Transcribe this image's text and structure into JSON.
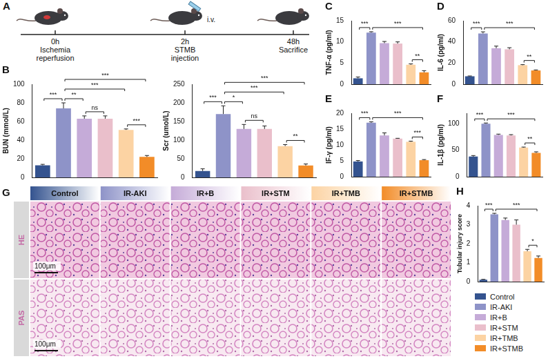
{
  "timeline": {
    "panel": "A",
    "events": [
      {
        "time": "0h",
        "text": [
          "Ischemia",
          "reperfusion"
        ]
      },
      {
        "time": "2h",
        "text": [
          "STMB",
          "injection"
        ],
        "route": "i.v."
      },
      {
        "time": "48h",
        "text": [
          "Sacrifice"
        ]
      }
    ]
  },
  "chart_data": [
    {
      "panel": "B",
      "type": "bar",
      "y_label": "BUN (mmol/L)",
      "categories": [
        "Control",
        "IR-AKI",
        "IR+B",
        "IR+STM",
        "IR+TMB",
        "IR+STMB"
      ],
      "values": [
        13,
        74,
        63,
        63,
        51,
        22
      ],
      "errors": [
        1,
        6,
        3,
        3,
        1,
        1.5
      ],
      "colors": [
        "#34538f",
        "#8e93c8",
        "#c5abd8",
        "#eabfcb",
        "#fcd3a3",
        "#f28c28"
      ],
      "ylim": [
        0,
        100
      ],
      "yticks": [
        0,
        20,
        40,
        60,
        80,
        100
      ],
      "grid": false,
      "tick_labels": "y",
      "significance": [
        {
          "from": 0,
          "to": 1,
          "label": "***"
        },
        {
          "from": 1,
          "to": 2,
          "label": "**"
        },
        {
          "from": 2,
          "to": 3,
          "label": "ns"
        },
        {
          "from": 1,
          "to": 4,
          "label": "***"
        },
        {
          "from": 1,
          "to": 5,
          "label": "***"
        },
        {
          "from": 4,
          "to": 5,
          "label": "***"
        }
      ]
    },
    {
      "type": "bar",
      "y_label": "Scr (umol/L)",
      "categories": [
        "Control",
        "IR-AKI",
        "IR+B",
        "IR+STM",
        "IR+TMB",
        "IR+STMB"
      ],
      "values": [
        17,
        170,
        130,
        130,
        84,
        32
      ],
      "errors": [
        6,
        22,
        12,
        8,
        4,
        4
      ],
      "colors": [
        "#34538f",
        "#8e93c8",
        "#c5abd8",
        "#eabfcb",
        "#fcd3a3",
        "#f28c28"
      ],
      "ylim": [
        0,
        250
      ],
      "yticks": [
        0,
        50,
        100,
        150,
        200,
        250
      ],
      "grid": false,
      "tick_labels": "y",
      "significance": [
        {
          "from": 0,
          "to": 1,
          "label": "***"
        },
        {
          "from": 1,
          "to": 2,
          "label": "*"
        },
        {
          "from": 2,
          "to": 3,
          "label": "ns"
        },
        {
          "from": 1,
          "to": 4,
          "label": "***"
        },
        {
          "from": 1,
          "to": 5,
          "label": "***"
        },
        {
          "from": 4,
          "to": 5,
          "label": "**"
        }
      ]
    },
    {
      "panel": "C",
      "type": "bar",
      "y_label": "TNF-α (pg/ml)",
      "categories": [
        "Control",
        "IR-AKI",
        "IR+B",
        "IR+STM",
        "IR+TMB",
        "IR+STMB"
      ],
      "values": [
        1.4,
        12.2,
        9.7,
        9.6,
        4.6,
        2.8
      ],
      "errors": [
        0.3,
        0.2,
        0.4,
        0.4,
        0.2,
        0.4
      ],
      "colors": [
        "#34538f",
        "#8e93c8",
        "#c5abd8",
        "#eabfcb",
        "#fcd3a3",
        "#f28c28"
      ],
      "ylim": [
        0,
        15
      ],
      "yticks": [
        0,
        5,
        10,
        15
      ],
      "grid": false,
      "tick_labels": "y",
      "significance": [
        {
          "from": 0,
          "to": 1,
          "label": "***"
        },
        {
          "from": 1,
          "to": 5,
          "label": "***"
        },
        {
          "from": 4,
          "to": 5,
          "label": "**"
        }
      ]
    },
    {
      "panel": "D",
      "type": "bar",
      "y_label": "IL-6 (pg/ml)",
      "categories": [
        "Control",
        "IR-AKI",
        "IR+B",
        "IR+STM",
        "IR+TMB",
        "IR+STMB"
      ],
      "values": [
        7.5,
        48,
        34,
        33,
        18,
        13
      ],
      "errors": [
        0.3,
        1.5,
        2,
        1.5,
        0.5,
        0.5
      ],
      "colors": [
        "#34538f",
        "#8e93c8",
        "#c5abd8",
        "#eabfcb",
        "#fcd3a3",
        "#f28c28"
      ],
      "ylim": [
        0,
        60
      ],
      "yticks": [
        0,
        20,
        40,
        60
      ],
      "grid": false,
      "tick_labels": "y",
      "significance": [
        {
          "from": 0,
          "to": 1,
          "label": "***"
        },
        {
          "from": 1,
          "to": 5,
          "label": "***"
        },
        {
          "from": 4,
          "to": 5,
          "label": "**"
        }
      ]
    },
    {
      "panel": "E",
      "type": "bar",
      "y_label": "IF-γ (pg/ml)",
      "categories": [
        "Control",
        "IR-AKI",
        "IR+B",
        "IR+STM",
        "IR+TMB",
        "IR+STMB"
      ],
      "values": [
        4.8,
        17,
        13,
        12,
        11,
        5.2
      ],
      "errors": [
        0.3,
        0.3,
        0.8,
        0.1,
        0.2,
        0.2
      ],
      "colors": [
        "#34538f",
        "#8e93c8",
        "#c5abd8",
        "#eabfcb",
        "#fcd3a3",
        "#f28c28"
      ],
      "ylim": [
        0,
        20
      ],
      "yticks": [
        0,
        5,
        10,
        15,
        20
      ],
      "grid": false,
      "tick_labels": "y",
      "significance": [
        {
          "from": 0,
          "to": 1,
          "label": "***"
        },
        {
          "from": 1,
          "to": 5,
          "label": "***"
        },
        {
          "from": 4,
          "to": 5,
          "label": "***"
        }
      ]
    },
    {
      "panel": "F",
      "type": "bar",
      "y_label": "IL-1β (pg/ml)",
      "categories": [
        "Control",
        "IR-AKI",
        "IR+B",
        "IR+STM",
        "IR+TMB",
        "IR+STMB"
      ],
      "values": [
        38,
        100,
        79,
        78,
        55,
        45
      ],
      "errors": [
        2,
        1.5,
        1.5,
        1.5,
        1,
        2
      ],
      "colors": [
        "#34538f",
        "#8e93c8",
        "#c5abd8",
        "#eabfcb",
        "#fcd3a3",
        "#f28c28"
      ],
      "ylim": [
        0,
        120
      ],
      "yticks": [
        0,
        50,
        100
      ],
      "grid": false,
      "tick_labels": "y",
      "significance": [
        {
          "from": 0,
          "to": 1,
          "label": "***"
        },
        {
          "from": 1,
          "to": 5,
          "label": "***"
        },
        {
          "from": 4,
          "to": 5,
          "label": "**"
        }
      ]
    },
    {
      "panel": "H",
      "type": "bar",
      "y_label": "Tubular injury score",
      "categories": [
        "Control",
        "IR-AKI",
        "IR+B",
        "IR+STM",
        "IR+TMB",
        "IR+STMB"
      ],
      "values": [
        0.1,
        3.55,
        3.25,
        3.0,
        1.6,
        1.25
      ],
      "errors": [
        0.02,
        0.05,
        0.1,
        0.25,
        0.1,
        0.1
      ],
      "colors": [
        "#34538f",
        "#8e93c8",
        "#c5abd8",
        "#eabfcb",
        "#fcd3a3",
        "#f28c28"
      ],
      "ylim": [
        0,
        4
      ],
      "yticks": [
        0,
        1,
        2,
        3,
        4
      ],
      "grid": false,
      "tick_labels": "y",
      "legend": "bottom",
      "significance": [
        {
          "from": 0,
          "to": 1,
          "label": "***"
        },
        {
          "from": 1,
          "to": 5,
          "label": "***"
        },
        {
          "from": 4,
          "to": 5,
          "label": "*"
        }
      ]
    }
  ],
  "histology": {
    "panel": "G",
    "columns": [
      "Control",
      "IR-AKI",
      "IR+B",
      "IR+STM",
      "IR+TMB",
      "IR+STMB"
    ],
    "colors": [
      "#34538f",
      "#8e93c8",
      "#c5abd8",
      "#eabfcb",
      "#fcd3a3",
      "#f28c28"
    ],
    "rows": [
      "HE",
      "PAS"
    ],
    "scale_bar": "100μm"
  }
}
